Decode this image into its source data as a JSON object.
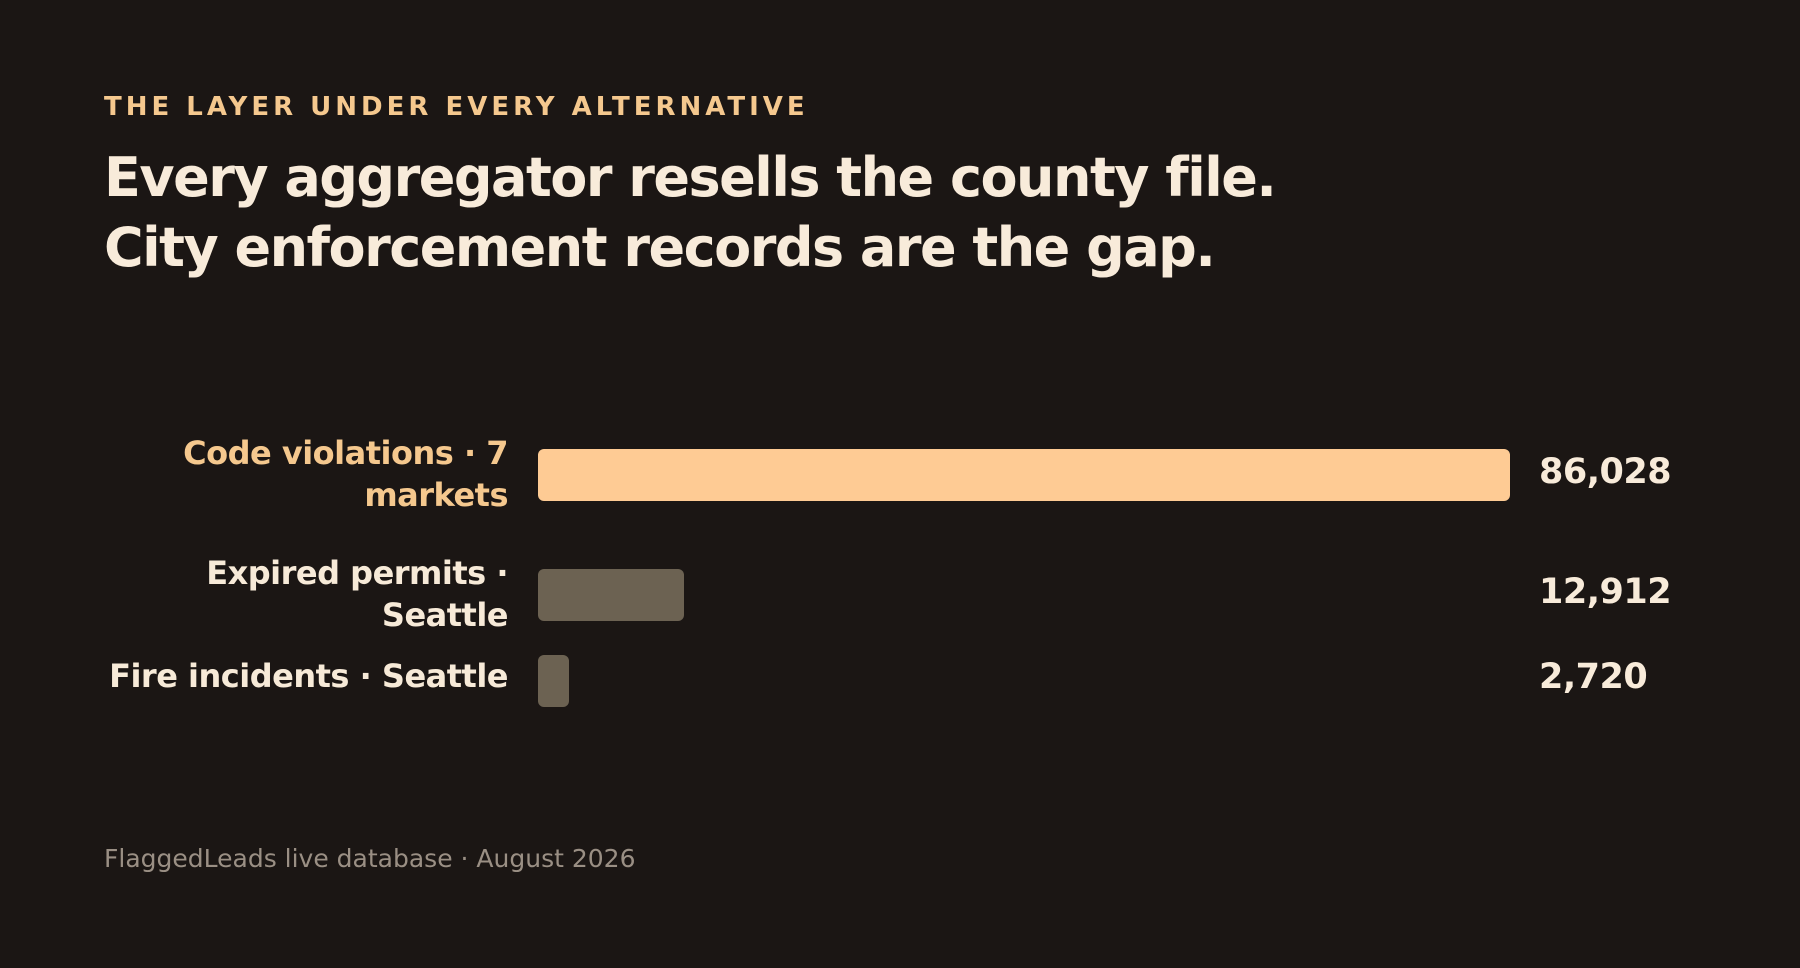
{
  "header": {
    "eyebrow": "THE LAYER UNDER EVERY ALTERNATIVE",
    "title_line1": "Every aggregator resells the county file.",
    "title_line2": "City enforcement records are the gap."
  },
  "footer": {
    "source": "FlaggedLeads live database · August 2026"
  },
  "colors": {
    "background": "#1b1614",
    "highlight_bar": "#fecb94",
    "muted_bar": "#6c6252",
    "highlight_text": "#f5c88e",
    "text": "#f8ebda",
    "footer_text": "#9a8f84"
  },
  "chart_data": {
    "type": "bar",
    "orientation": "horizontal",
    "categories": [
      "Code violations · 7 markets",
      "Expired permits · Seattle",
      "Fire incidents · Seattle"
    ],
    "values": [
      86028,
      12912,
      2720
    ],
    "value_labels": [
      "86,028",
      "12,912",
      "2,720"
    ],
    "highlight": [
      true,
      false,
      false
    ],
    "xlim": [
      0,
      86028
    ],
    "grid": false,
    "legend": "none"
  }
}
